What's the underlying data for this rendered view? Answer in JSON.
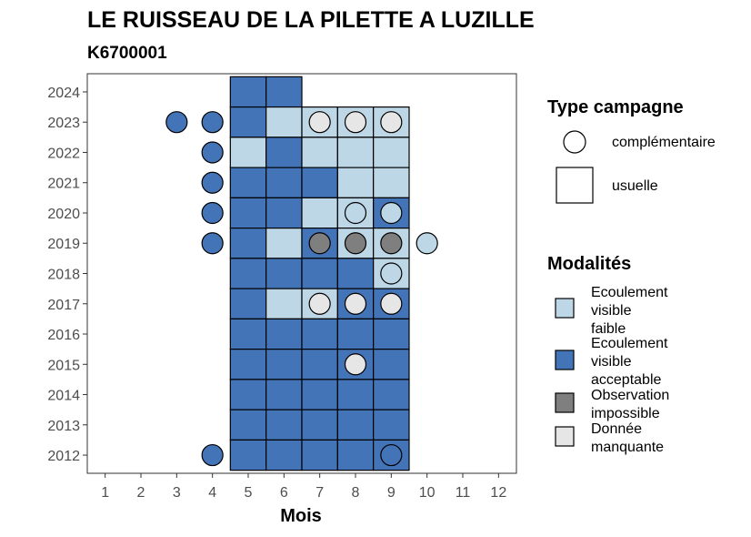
{
  "chart_data": {
    "type": "heatmap",
    "title": "LE RUISSEAU DE LA PILETTE A LUZILLE",
    "subtitle": "K6700001",
    "xlabel": "Mois",
    "ylabel": "",
    "x_ticks": [
      "1",
      "2",
      "3",
      "4",
      "5",
      "6",
      "7",
      "8",
      "9",
      "10",
      "11",
      "12"
    ],
    "y_ticks": [
      "2012",
      "2013",
      "2014",
      "2015",
      "2016",
      "2017",
      "2018",
      "2019",
      "2020",
      "2021",
      "2022",
      "2023",
      "2024"
    ],
    "xlim": [
      0.5,
      12.5
    ],
    "ylim": [
      2011.4,
      2024.6
    ],
    "grid": false,
    "legend_placement": "right",
    "colors": {
      "faible": "#bdd7e7",
      "acceptable": "#4474b8",
      "impossible": "#7f7f7f",
      "manquante": "#e6e6e6",
      "border": "#000000"
    },
    "legends": {
      "type_title": "Type campagne",
      "type_items": [
        {
          "shape": "circle",
          "label": "complémentaire"
        },
        {
          "shape": "square",
          "label": "usuelle"
        }
      ],
      "mod_title": "Modalités",
      "mod_items": [
        {
          "key": "faible",
          "lines": [
            "Ecoulement",
            "visible",
            "faible"
          ]
        },
        {
          "key": "acceptable",
          "lines": [
            "Ecoulement",
            "visible",
            "acceptable"
          ]
        },
        {
          "key": "impossible",
          "lines": [
            "Observation",
            "impossible"
          ]
        },
        {
          "key": "manquante",
          "lines": [
            "Donnée",
            "manquante"
          ]
        }
      ]
    },
    "usuelle": [
      {
        "year": 2024,
        "month": 5,
        "value": "acceptable"
      },
      {
        "year": 2024,
        "month": 6,
        "value": "acceptable"
      },
      {
        "year": 2023,
        "month": 5,
        "value": "acceptable"
      },
      {
        "year": 2023,
        "month": 6,
        "value": "faible"
      },
      {
        "year": 2023,
        "month": 7,
        "value": "faible"
      },
      {
        "year": 2023,
        "month": 8,
        "value": "faible"
      },
      {
        "year": 2023,
        "month": 9,
        "value": "faible"
      },
      {
        "year": 2022,
        "month": 5,
        "value": "faible"
      },
      {
        "year": 2022,
        "month": 6,
        "value": "acceptable"
      },
      {
        "year": 2022,
        "month": 7,
        "value": "faible"
      },
      {
        "year": 2022,
        "month": 8,
        "value": "faible"
      },
      {
        "year": 2022,
        "month": 9,
        "value": "faible"
      },
      {
        "year": 2021,
        "month": 5,
        "value": "acceptable"
      },
      {
        "year": 2021,
        "month": 6,
        "value": "acceptable"
      },
      {
        "year": 2021,
        "month": 7,
        "value": "acceptable"
      },
      {
        "year": 2021,
        "month": 8,
        "value": "faible"
      },
      {
        "year": 2021,
        "month": 9,
        "value": "faible"
      },
      {
        "year": 2020,
        "month": 5,
        "value": "acceptable"
      },
      {
        "year": 2020,
        "month": 6,
        "value": "acceptable"
      },
      {
        "year": 2020,
        "month": 7,
        "value": "faible"
      },
      {
        "year": 2020,
        "month": 8,
        "value": "faible"
      },
      {
        "year": 2020,
        "month": 9,
        "value": "acceptable"
      },
      {
        "year": 2019,
        "month": 5,
        "value": "acceptable"
      },
      {
        "year": 2019,
        "month": 6,
        "value": "faible"
      },
      {
        "year": 2019,
        "month": 7,
        "value": "acceptable"
      },
      {
        "year": 2019,
        "month": 8,
        "value": "faible"
      },
      {
        "year": 2019,
        "month": 9,
        "value": "faible"
      },
      {
        "year": 2018,
        "month": 5,
        "value": "acceptable"
      },
      {
        "year": 2018,
        "month": 6,
        "value": "acceptable"
      },
      {
        "year": 2018,
        "month": 7,
        "value": "acceptable"
      },
      {
        "year": 2018,
        "month": 8,
        "value": "acceptable"
      },
      {
        "year": 2018,
        "month": 9,
        "value": "faible"
      },
      {
        "year": 2017,
        "month": 5,
        "value": "acceptable"
      },
      {
        "year": 2017,
        "month": 6,
        "value": "faible"
      },
      {
        "year": 2017,
        "month": 7,
        "value": "faible"
      },
      {
        "year": 2017,
        "month": 8,
        "value": "acceptable"
      },
      {
        "year": 2017,
        "month": 9,
        "value": "acceptable"
      },
      {
        "year": 2016,
        "month": 5,
        "value": "acceptable"
      },
      {
        "year": 2016,
        "month": 6,
        "value": "acceptable"
      },
      {
        "year": 2016,
        "month": 7,
        "value": "acceptable"
      },
      {
        "year": 2016,
        "month": 8,
        "value": "acceptable"
      },
      {
        "year": 2016,
        "month": 9,
        "value": "acceptable"
      },
      {
        "year": 2015,
        "month": 5,
        "value": "acceptable"
      },
      {
        "year": 2015,
        "month": 6,
        "value": "acceptable"
      },
      {
        "year": 2015,
        "month": 7,
        "value": "acceptable"
      },
      {
        "year": 2015,
        "month": 8,
        "value": "acceptable"
      },
      {
        "year": 2015,
        "month": 9,
        "value": "acceptable"
      },
      {
        "year": 2014,
        "month": 5,
        "value": "acceptable"
      },
      {
        "year": 2014,
        "month": 6,
        "value": "acceptable"
      },
      {
        "year": 2014,
        "month": 7,
        "value": "acceptable"
      },
      {
        "year": 2014,
        "month": 8,
        "value": "acceptable"
      },
      {
        "year": 2014,
        "month": 9,
        "value": "acceptable"
      },
      {
        "year": 2013,
        "month": 5,
        "value": "acceptable"
      },
      {
        "year": 2013,
        "month": 6,
        "value": "acceptable"
      },
      {
        "year": 2013,
        "month": 7,
        "value": "acceptable"
      },
      {
        "year": 2013,
        "month": 8,
        "value": "acceptable"
      },
      {
        "year": 2013,
        "month": 9,
        "value": "acceptable"
      },
      {
        "year": 2012,
        "month": 5,
        "value": "acceptable"
      },
      {
        "year": 2012,
        "month": 6,
        "value": "acceptable"
      },
      {
        "year": 2012,
        "month": 7,
        "value": "acceptable"
      },
      {
        "year": 2012,
        "month": 8,
        "value": "acceptable"
      },
      {
        "year": 2012,
        "month": 9,
        "value": "acceptable"
      }
    ],
    "complementaire": [
      {
        "year": 2023,
        "month": 3,
        "value": "acceptable"
      },
      {
        "year": 2023,
        "month": 4,
        "value": "acceptable"
      },
      {
        "year": 2023,
        "month": 7,
        "value": "manquante"
      },
      {
        "year": 2023,
        "month": 8,
        "value": "manquante"
      },
      {
        "year": 2023,
        "month": 9,
        "value": "manquante"
      },
      {
        "year": 2022,
        "month": 4,
        "value": "acceptable"
      },
      {
        "year": 2021,
        "month": 4,
        "value": "acceptable"
      },
      {
        "year": 2020,
        "month": 4,
        "value": "acceptable"
      },
      {
        "year": 2020,
        "month": 8,
        "value": "faible"
      },
      {
        "year": 2020,
        "month": 9,
        "value": "faible"
      },
      {
        "year": 2019,
        "month": 4,
        "value": "acceptable"
      },
      {
        "year": 2019,
        "month": 7,
        "value": "impossible"
      },
      {
        "year": 2019,
        "month": 8,
        "value": "impossible"
      },
      {
        "year": 2019,
        "month": 9,
        "value": "impossible"
      },
      {
        "year": 2019,
        "month": 10,
        "value": "faible"
      },
      {
        "year": 2018,
        "month": 9,
        "value": "faible"
      },
      {
        "year": 2017,
        "month": 7,
        "value": "manquante"
      },
      {
        "year": 2017,
        "month": 8,
        "value": "manquante"
      },
      {
        "year": 2017,
        "month": 9,
        "value": "manquante"
      },
      {
        "year": 2015,
        "month": 8,
        "value": "manquante"
      },
      {
        "year": 2012,
        "month": 4,
        "value": "acceptable"
      },
      {
        "year": 2012,
        "month": 9,
        "value": "acceptable"
      }
    ]
  }
}
